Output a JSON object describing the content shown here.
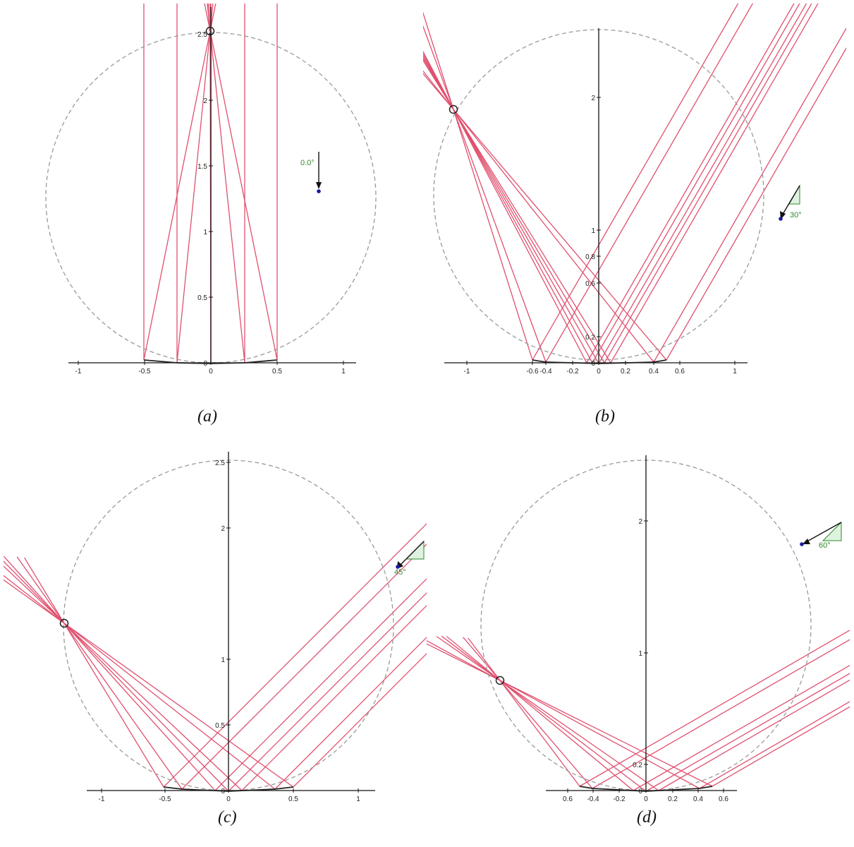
{
  "colors": {
    "ray": "#e0506e",
    "axis": "#111111",
    "circle": "#9a9a9a",
    "angle": "#2a8a2a",
    "source_point": "#1a1aa0",
    "wedge_fill": "#dff2df"
  },
  "panels": [
    {
      "id": "a",
      "caption": "(a)",
      "angle_label": "0.0°",
      "x_ticks": [
        "-1",
        "-0.5",
        "0",
        "0.5",
        "1"
      ],
      "y_ticks": [
        "0",
        "0.5",
        "1",
        "1.5",
        "2",
        "2.5"
      ]
    },
    {
      "id": "b",
      "caption": "(b)",
      "angle_label": "30°",
      "x_ticks": [
        "-1",
        "-0.6",
        "-0.4",
        "-0.2",
        "0",
        "0.2",
        "0.4",
        "0.6",
        "1"
      ],
      "y_ticks": [
        "0",
        "0.2",
        "0.6",
        "0.8",
        "1",
        "2"
      ]
    },
    {
      "id": "c",
      "caption": "(c)",
      "angle_label": "45°",
      "x_ticks": [
        "-1",
        "-0.5",
        "0",
        "0.5",
        "1"
      ],
      "y_ticks": [
        "0",
        "0.5",
        "1",
        "2",
        "2.5"
      ]
    },
    {
      "id": "d",
      "caption": "(d)",
      "angle_label": "60°",
      "x_ticks": [
        "0.6",
        "-0.4",
        "-0.2",
        "0",
        "0.2",
        "0.4",
        "0.6"
      ],
      "y_ticks": [
        "0",
        "0.2",
        "1",
        "2"
      ]
    }
  ]
}
